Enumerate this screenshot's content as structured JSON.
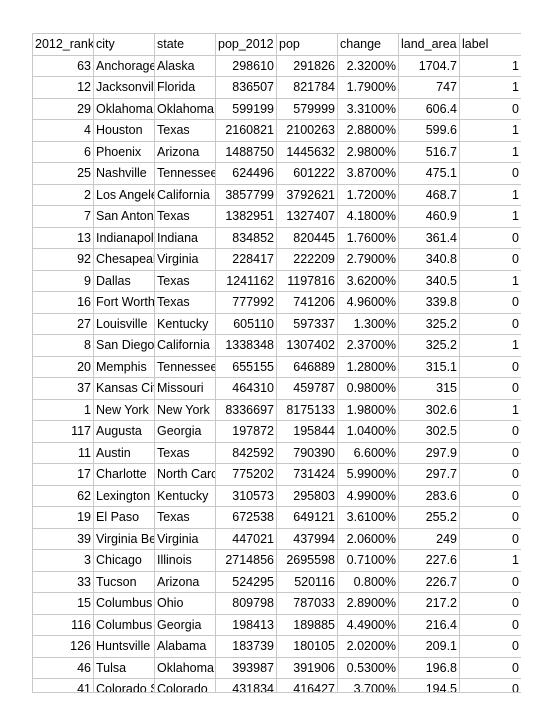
{
  "columns": [
    "2012_rank",
    "city",
    "state",
    "pop_2012",
    "pop",
    "change",
    "land_area",
    "label"
  ],
  "rows": [
    [
      "63",
      "Anchorage",
      "Alaska",
      "298610",
      "291826",
      "2.3200%",
      "1704.7",
      "1"
    ],
    [
      "12",
      "Jacksonville",
      "Florida",
      "836507",
      "821784",
      "1.7900%",
      "747",
      "1"
    ],
    [
      "29",
      "Oklahoma City",
      "Oklahoma",
      "599199",
      "579999",
      "3.3100%",
      "606.4",
      "0"
    ],
    [
      "4",
      "Houston",
      "Texas",
      "2160821",
      "2100263",
      "2.8800%",
      "599.6",
      "1"
    ],
    [
      "6",
      "Phoenix",
      "Arizona",
      "1488750",
      "1445632",
      "2.9800%",
      "516.7",
      "1"
    ],
    [
      "25",
      "Nashville",
      "Tennessee",
      "624496",
      "601222",
      "3.8700%",
      "475.1",
      "0"
    ],
    [
      "2",
      "Los Angeles",
      "California",
      "3857799",
      "3792621",
      "1.7200%",
      "468.7",
      "1"
    ],
    [
      "7",
      "San Antonio",
      "Texas",
      "1382951",
      "1327407",
      "4.1800%",
      "460.9",
      "1"
    ],
    [
      "13",
      "Indianapolis",
      "Indiana",
      "834852",
      "820445",
      "1.7600%",
      "361.4",
      "0"
    ],
    [
      "92",
      "Chesapeake",
      "Virginia",
      "228417",
      "222209",
      "2.7900%",
      "340.8",
      "0"
    ],
    [
      "9",
      "Dallas",
      "Texas",
      "1241162",
      "1197816",
      "3.6200%",
      "340.5",
      "1"
    ],
    [
      "16",
      "Fort Worth",
      "Texas",
      "777992",
      "741206",
      "4.9600%",
      "339.8",
      "0"
    ],
    [
      "27",
      "Louisville",
      "Kentucky",
      "605110",
      "597337",
      "1.300%",
      "325.2",
      "0"
    ],
    [
      "8",
      "San Diego",
      "California",
      "1338348",
      "1307402",
      "2.3700%",
      "325.2",
      "1"
    ],
    [
      "20",
      "Memphis",
      "Tennessee",
      "655155",
      "646889",
      "1.2800%",
      "315.1",
      "0"
    ],
    [
      "37",
      "Kansas City",
      "Missouri",
      "464310",
      "459787",
      "0.9800%",
      "315",
      "0"
    ],
    [
      "1",
      "New York",
      "New York",
      "8336697",
      "8175133",
      "1.9800%",
      "302.6",
      "1"
    ],
    [
      "117",
      "Augusta",
      "Georgia",
      "197872",
      "195844",
      "1.0400%",
      "302.5",
      "0"
    ],
    [
      "11",
      "Austin",
      "Texas",
      "842592",
      "790390",
      "6.600%",
      "297.9",
      "0"
    ],
    [
      "17",
      "Charlotte",
      "North Carolina",
      "775202",
      "731424",
      "5.9900%",
      "297.7",
      "0"
    ],
    [
      "62",
      "Lexington",
      "Kentucky",
      "310573",
      "295803",
      "4.9900%",
      "283.6",
      "0"
    ],
    [
      "19",
      "El Paso",
      "Texas",
      "672538",
      "649121",
      "3.6100%",
      "255.2",
      "0"
    ],
    [
      "39",
      "Virginia Beach",
      "Virginia",
      "447021",
      "437994",
      "2.0600%",
      "249",
      "0"
    ],
    [
      "3",
      "Chicago",
      "Illinois",
      "2714856",
      "2695598",
      "0.7100%",
      "227.6",
      "1"
    ],
    [
      "33",
      "Tucson",
      "Arizona",
      "524295",
      "520116",
      "0.800%",
      "226.7",
      "0"
    ],
    [
      "15",
      "Columbus",
      "Ohio",
      "809798",
      "787033",
      "2.8900%",
      "217.2",
      "0"
    ],
    [
      "116",
      "Columbus",
      "Georgia",
      "198413",
      "189885",
      "4.4900%",
      "216.4",
      "0"
    ],
    [
      "126",
      "Huntsville",
      "Alabama",
      "183739",
      "180105",
      "2.0200%",
      "209.1",
      "0"
    ],
    [
      "46",
      "Tulsa",
      "Oklahoma",
      "393987",
      "391906",
      "0.5300%",
      "196.8",
      "0"
    ],
    [
      "41",
      "Colorado Springs",
      "Colorado",
      "431834",
      "416427",
      "3.700%",
      "194.5",
      "0"
    ]
  ]
}
